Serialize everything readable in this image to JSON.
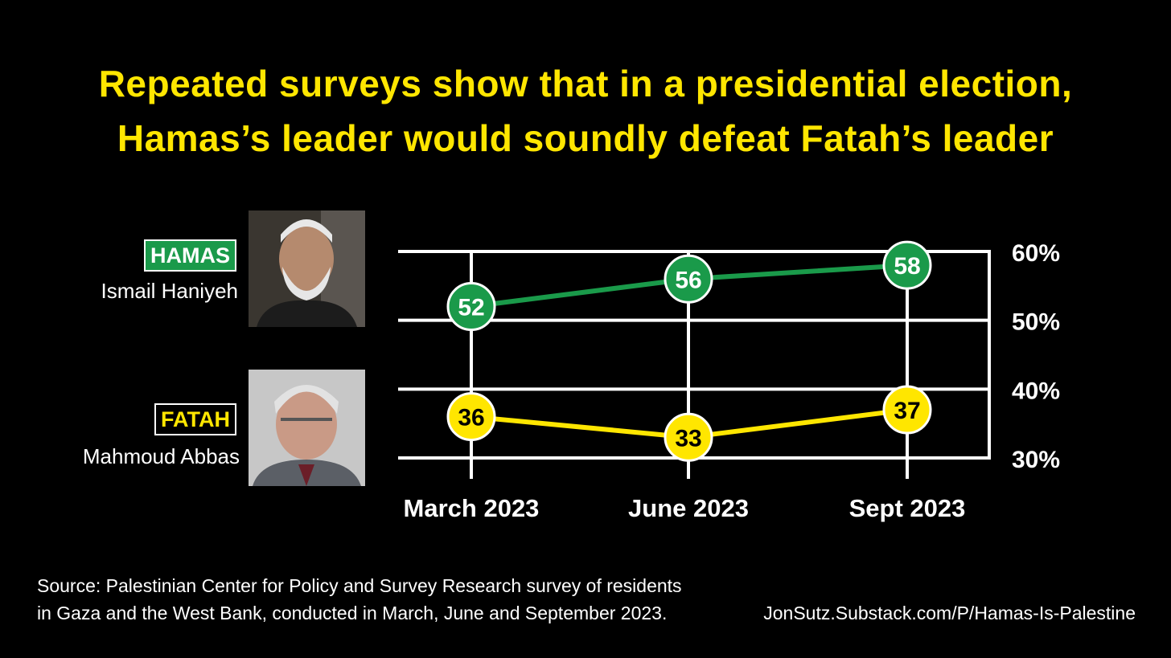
{
  "title": {
    "line1": "Repeated surveys show that in a presidential election,",
    "line2": "Hamas’s leader would soundly defeat Fatah’s leader"
  },
  "hamas": {
    "badge": "HAMAS",
    "leader": "Ismail Haniyeh",
    "color": "#1a9a4a"
  },
  "fatah": {
    "badge": "FATAH",
    "leader": "Mahmoud Abbas",
    "color": "#ffe600"
  },
  "source": {
    "line1": "Source: Palestinian Center for Policy and Survey Research survey of residents",
    "line2": "in Gaza and the West Bank, conducted in March, June and September 2023."
  },
  "credit": "JonSutz.Substack.com/P/Hamas-Is-Palestine",
  "chart_data": {
    "type": "line",
    "categories": [
      "March 2023",
      "June 2023",
      "Sept 2023"
    ],
    "series": [
      {
        "name": "HAMAS",
        "values": [
          52,
          56,
          58
        ],
        "color": "#1a9a4a"
      },
      {
        "name": "FATAH",
        "values": [
          36,
          33,
          37
        ],
        "color": "#ffe600"
      }
    ],
    "yticks": [
      "30%",
      "40%",
      "50%",
      "60%"
    ],
    "ylim": [
      30,
      60
    ],
    "grid": true,
    "axis_side": "right"
  }
}
